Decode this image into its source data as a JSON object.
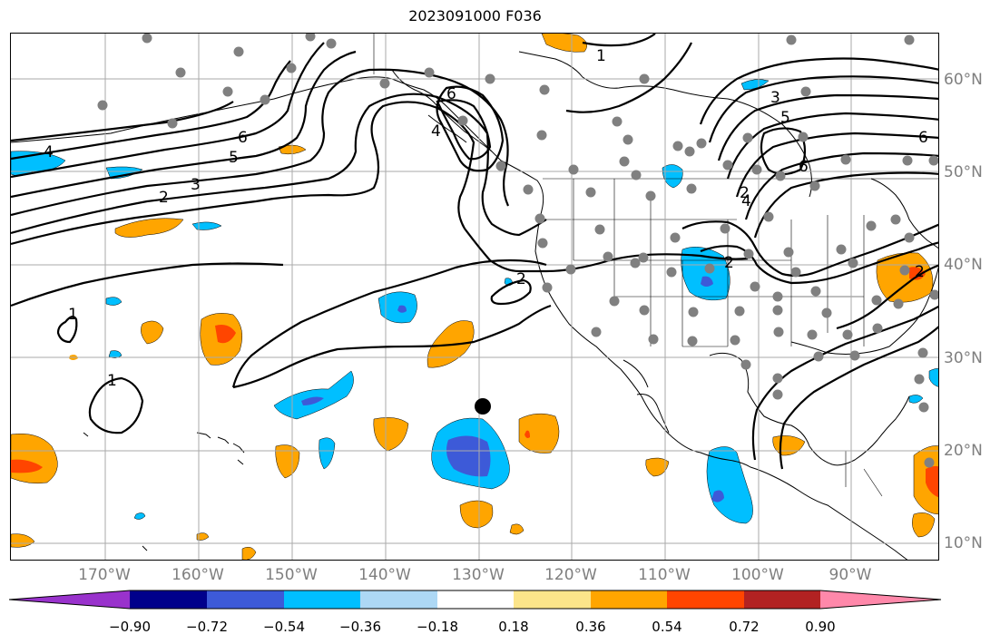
{
  "title": "2023091000 F036",
  "lat_labels": [
    "60°N",
    "50°N",
    "40°N",
    "30°N",
    "20°N",
    "10°N"
  ],
  "lon_labels": [
    "170°W",
    "160°W",
    "150°W",
    "140°W",
    "130°W",
    "120°W",
    "110°W",
    "100°W",
    "90°W"
  ],
  "contour_labels": [
    "1",
    "1",
    "1",
    "2",
    "3",
    "4",
    "5",
    "6",
    "6",
    "4",
    "2",
    "2",
    "3",
    "5",
    "6",
    "4",
    "6",
    "2",
    "2"
  ],
  "colorbar": {
    "ticks": [
      "−0.90",
      "−0.72",
      "−0.54",
      "−0.36",
      "−0.18",
      "0.18",
      "0.36",
      "0.54",
      "0.72",
      "0.90"
    ],
    "colors": [
      "#9932cc",
      "#00008b",
      "#3d5ad8",
      "#00bfff",
      "#add8f5",
      "#ffffff",
      "#fce58a",
      "#ffa500",
      "#ff4500",
      "#b22222",
      "#ff88aa"
    ]
  },
  "colors": {
    "grid": "#aaaaaa",
    "station": "#808080",
    "contour": "#000000",
    "label": "#7f7f7f"
  }
}
